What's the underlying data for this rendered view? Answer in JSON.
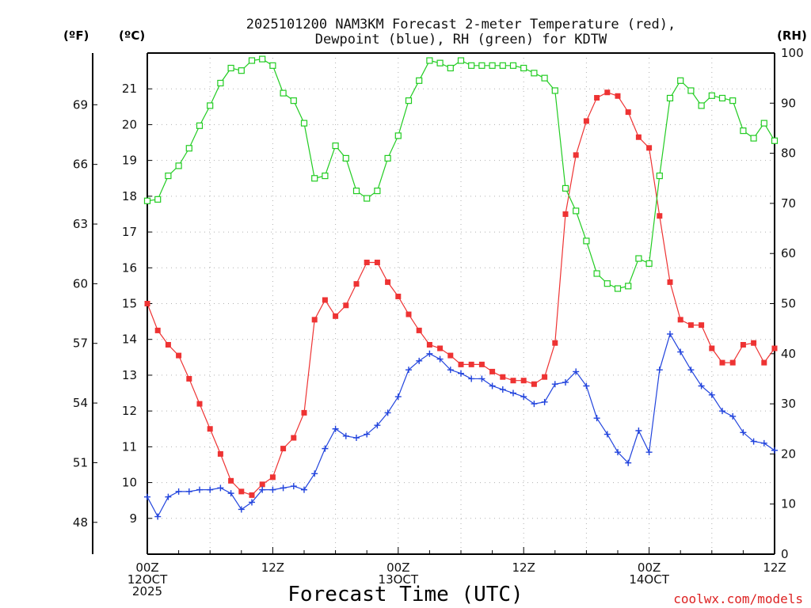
{
  "chart_data": {
    "type": "line",
    "title_line1": "2025101200 NAM3KM Forecast 2-meter Temperature (red),",
    "title_line2": "Dewpoint (blue), RH (green) for KDTW",
    "xlabel": "Forecast Time (UTC)",
    "credit": "coolwx.com/models",
    "units": {
      "fahrenheit": "(ºF)",
      "celsius": "(ºC)",
      "rh": "(RH)"
    },
    "hours": {
      "start": 0,
      "end": 60,
      "step": 1
    },
    "x_ticks": [
      {
        "hour": 0,
        "lines": [
          "00Z",
          "12OCT",
          "2025"
        ]
      },
      {
        "hour": 12,
        "lines": [
          "12Z"
        ]
      },
      {
        "hour": 24,
        "lines": [
          "00Z",
          "13OCT"
        ]
      },
      {
        "hour": 36,
        "lines": [
          "12Z"
        ]
      },
      {
        "hour": 48,
        "lines": [
          "00Z",
          "14OCT"
        ]
      },
      {
        "hour": 60,
        "lines": [
          "12Z"
        ]
      }
    ],
    "y_celsius": {
      "min": 8.0,
      "max": 22.0,
      "ticks": [
        9,
        10,
        11,
        12,
        13,
        14,
        15,
        16,
        17,
        18,
        19,
        20,
        21
      ]
    },
    "y_fahrenheit": {
      "ticks": [
        48,
        51,
        54,
        57,
        60,
        63,
        66,
        69
      ]
    },
    "y_rh": {
      "min": 0,
      "max": 100,
      "ticks": [
        0,
        10,
        20,
        30,
        40,
        50,
        60,
        70,
        80,
        90,
        100
      ]
    },
    "colors": {
      "temperature": "#ee3333",
      "dewpoint": "#2244dd",
      "rh": "#22cc22",
      "axis": "#000000"
    },
    "series": [
      {
        "name": "Temperature",
        "unit": "C",
        "marker": "filled-square",
        "values": [
          15.0,
          14.25,
          13.85,
          13.55,
          12.9,
          12.2,
          11.5,
          10.8,
          10.05,
          9.75,
          9.65,
          9.95,
          10.15,
          10.95,
          11.25,
          11.95,
          14.55,
          15.1,
          14.65,
          14.95,
          15.55,
          16.15,
          16.15,
          15.6,
          15.2,
          14.7,
          14.25,
          13.85,
          13.75,
          13.55,
          13.3,
          13.3,
          13.3,
          13.1,
          12.95,
          12.85,
          12.85,
          12.75,
          12.95,
          13.9,
          17.5,
          19.15,
          20.1,
          20.75,
          20.9,
          20.8,
          20.35,
          19.65,
          19.35,
          17.45,
          15.6,
          14.55,
          14.4,
          14.4,
          13.75,
          13.35,
          13.35,
          13.85,
          13.9,
          13.35,
          13.75
        ]
      },
      {
        "name": "Dewpoint",
        "unit": "C",
        "marker": "plus",
        "values": [
          9.6,
          9.05,
          9.6,
          9.75,
          9.75,
          9.8,
          9.8,
          9.85,
          9.7,
          9.25,
          9.45,
          9.8,
          9.8,
          9.85,
          9.9,
          9.8,
          10.25,
          10.95,
          11.5,
          11.3,
          11.25,
          11.35,
          11.6,
          11.95,
          12.4,
          13.15,
          13.4,
          13.6,
          13.45,
          13.15,
          13.05,
          12.9,
          12.9,
          12.7,
          12.6,
          12.5,
          12.4,
          12.2,
          12.25,
          12.75,
          12.8,
          13.1,
          12.7,
          11.8,
          11.35,
          10.85,
          10.55,
          11.45,
          10.85,
          13.15,
          14.15,
          13.65,
          13.15,
          12.7,
          12.45,
          12.0,
          11.85,
          11.4,
          11.15,
          11.1,
          10.9
        ]
      },
      {
        "name": "RH",
        "unit": "%",
        "marker": "open-square",
        "axis": "right",
        "values": [
          70.5,
          70.8,
          75.5,
          77.5,
          81,
          85.5,
          89.5,
          94,
          97,
          96.5,
          98.5,
          98.8,
          97.5,
          92,
          90.5,
          86,
          75,
          75.5,
          81.5,
          79,
          72.5,
          71,
          72.5,
          79,
          83.5,
          90.5,
          94.5,
          98.5,
          98,
          97,
          98.5,
          97.5,
          97.5,
          97.5,
          97.5,
          97.5,
          97,
          96,
          95,
          92.5,
          73,
          68.5,
          62.5,
          56,
          54,
          53,
          53.5,
          59,
          58,
          75.5,
          91,
          94.5,
          92.5,
          89.5,
          91.5,
          91,
          90.5,
          84.5,
          83,
          86,
          82.5
        ]
      }
    ]
  }
}
